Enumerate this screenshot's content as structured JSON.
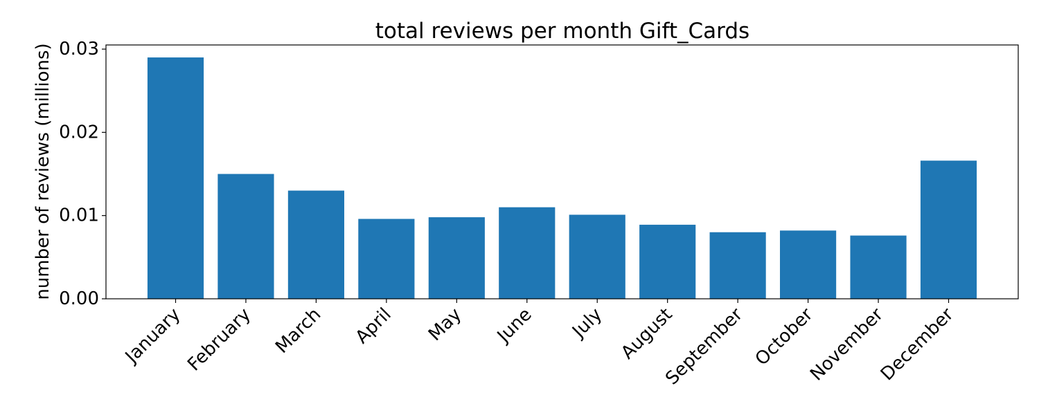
{
  "chart_data": {
    "type": "bar",
    "title": "total reviews per month Gift_Cards",
    "xlabel": "",
    "ylabel": "number of reviews (millions)",
    "categories": [
      "January",
      "February",
      "March",
      "April",
      "May",
      "June",
      "July",
      "August",
      "September",
      "October",
      "November",
      "December"
    ],
    "values": [
      0.029,
      0.015,
      0.013,
      0.0096,
      0.0098,
      0.011,
      0.0101,
      0.0089,
      0.008,
      0.0082,
      0.0076,
      0.0166
    ],
    "ylim": [
      0,
      0.0305
    ],
    "yticks": [
      0.0,
      0.01,
      0.02,
      0.03
    ],
    "ytick_labels": [
      "0.00",
      "0.01",
      "0.02",
      "0.03"
    ],
    "bar_color": "#1f77b4",
    "grid": false,
    "legend": "none"
  }
}
